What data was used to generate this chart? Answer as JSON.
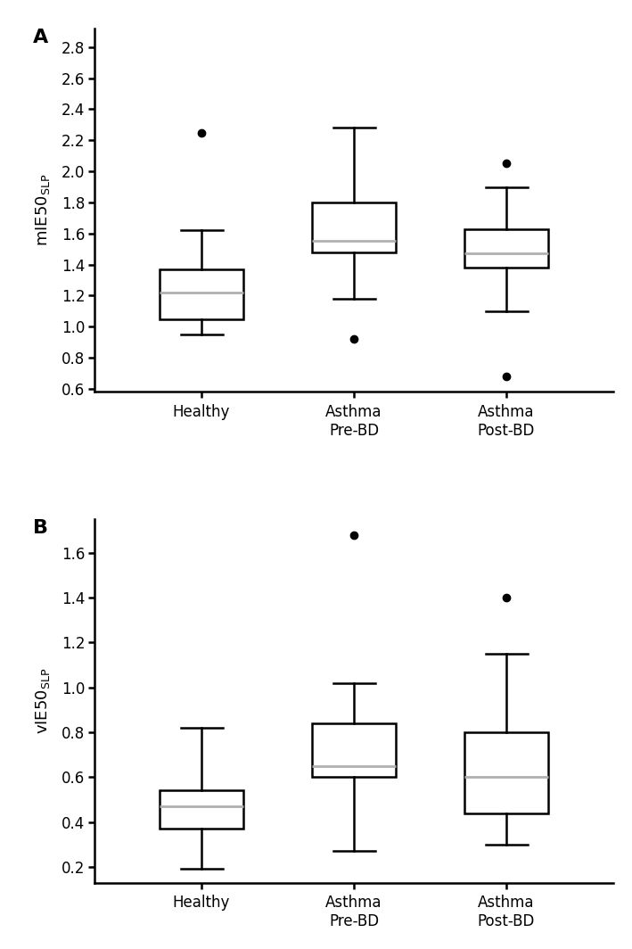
{
  "panel_A": {
    "label": "A",
    "ylabel_main": "mIE50",
    "ylabel_sub": "SLP",
    "ylim": [
      0.58,
      2.92
    ],
    "yticks": [
      0.6,
      0.8,
      1.0,
      1.2,
      1.4,
      1.6,
      1.8,
      2.0,
      2.2,
      2.4,
      2.6,
      2.8
    ],
    "groups": [
      "Healthy",
      "Asthma\nPre-BD",
      "Asthma\nPost-BD"
    ],
    "boxes": [
      {
        "q1": 1.05,
        "median": 1.22,
        "q3": 1.37,
        "whislo": 0.95,
        "whishi": 1.62,
        "fliers": [
          2.25
        ]
      },
      {
        "q1": 1.48,
        "median": 1.55,
        "q3": 1.8,
        "whislo": 1.18,
        "whishi": 2.28,
        "fliers": [
          0.92
        ]
      },
      {
        "q1": 1.38,
        "median": 1.47,
        "q3": 1.63,
        "whislo": 1.1,
        "whishi": 1.9,
        "fliers": [
          2.05,
          0.68
        ]
      }
    ]
  },
  "panel_B": {
    "label": "B",
    "ylabel_main": "vIE50",
    "ylabel_sub": "SLP",
    "ylim": [
      0.13,
      1.75
    ],
    "yticks": [
      0.2,
      0.4,
      0.6,
      0.8,
      1.0,
      1.2,
      1.4,
      1.6
    ],
    "groups": [
      "Healthy",
      "Asthma\nPre-BD",
      "Asthma\nPost-BD"
    ],
    "boxes": [
      {
        "q1": 0.37,
        "median": 0.47,
        "q3": 0.54,
        "whislo": 0.19,
        "whishi": 0.82,
        "fliers": []
      },
      {
        "q1": 0.6,
        "median": 0.65,
        "q3": 0.84,
        "whislo": 0.27,
        "whishi": 1.02,
        "fliers": [
          1.68
        ]
      },
      {
        "q1": 0.44,
        "median": 0.6,
        "q3": 0.8,
        "whislo": 0.3,
        "whishi": 1.15,
        "fliers": [
          1.4
        ]
      }
    ]
  },
  "box_color": "#ffffff",
  "box_edgecolor": "#000000",
  "median_color": "#b0b0b0",
  "whisker_color": "#000000",
  "flier_color": "#000000",
  "linewidth": 1.8,
  "box_width": 0.55,
  "figsize": [
    7.09,
    10.64
  ],
  "dpi": 100
}
